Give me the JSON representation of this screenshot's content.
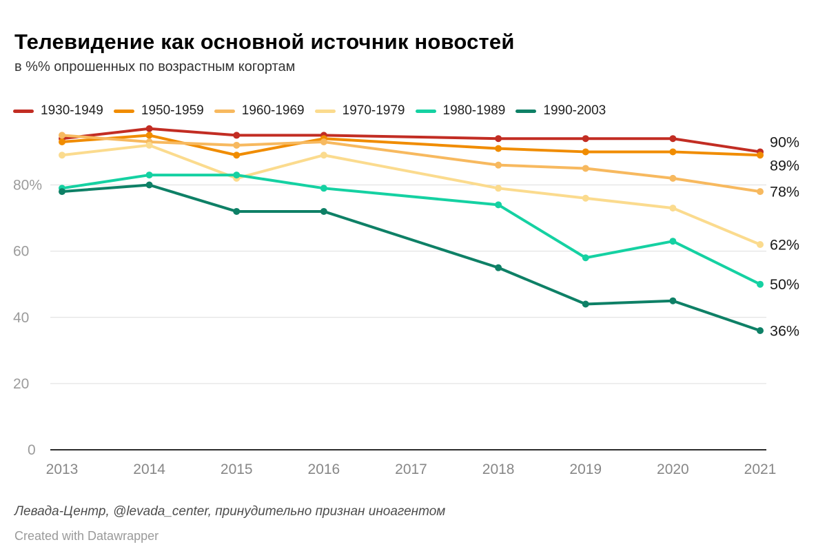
{
  "header": {
    "title": "Телевидение как основной источник новостей",
    "subtitle": "в %% опрошенных по возрастным когортам"
  },
  "chart_data": {
    "type": "line",
    "x": [
      2013,
      2014,
      2015,
      2016,
      2017,
      2018,
      2019,
      2020,
      2021
    ],
    "series": [
      {
        "name": "1930-1949",
        "color": "#c22d23",
        "values": [
          94,
          97,
          95,
          95,
          null,
          94,
          94,
          94,
          90
        ],
        "end_label": "90%"
      },
      {
        "name": "1950-1959",
        "color": "#f08c00",
        "values": [
          93,
          95,
          89,
          94,
          null,
          91,
          90,
          90,
          89
        ],
        "end_label": "89%"
      },
      {
        "name": "1960-1969",
        "color": "#f7b95f",
        "values": [
          95,
          93,
          92,
          93,
          null,
          86,
          85,
          82,
          78
        ],
        "end_label": "78%"
      },
      {
        "name": "1970-1979",
        "color": "#fbdb8e",
        "values": [
          89,
          92,
          82,
          89,
          null,
          79,
          76,
          73,
          62
        ],
        "end_label": "62%"
      },
      {
        "name": "1980-1989",
        "color": "#15d1a2",
        "values": [
          79,
          83,
          83,
          79,
          null,
          74,
          58,
          63,
          50
        ],
        "end_label": "50%"
      },
      {
        "name": "1990-2003",
        "color": "#0e8066",
        "values": [
          78,
          80,
          72,
          72,
          null,
          55,
          44,
          45,
          36
        ],
        "end_label": "36%"
      }
    ],
    "yticks": [
      {
        "v": 0,
        "label": "0"
      },
      {
        "v": 20,
        "label": "20"
      },
      {
        "v": 40,
        "label": "40"
      },
      {
        "v": 60,
        "label": "60"
      },
      {
        "v": 80,
        "label": "80%"
      }
    ],
    "ylim": [
      0,
      100
    ],
    "grid": true,
    "legend_position": "top",
    "missing_years": [
      2017
    ],
    "colors": {
      "gridline": "#dddddd",
      "axis": "#2b2b2b",
      "ytick_label": "#9b9b9b",
      "xtick_label": "#878787",
      "end_label": "#1a1a1a"
    }
  },
  "footer": {
    "source": "Левада-Центр, @levada_center, принудительно признан иноагентом",
    "credit": "Created with Datawrapper"
  }
}
